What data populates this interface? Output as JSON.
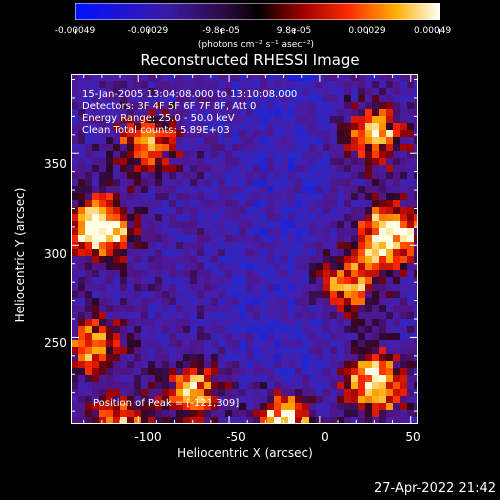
{
  "colorbar": {
    "ticks": [
      "-0.00049",
      "-0.00029",
      "-9.8e-05",
      "9.8e-05",
      "0.00029",
      "0.00049"
    ],
    "unit_label": "(photons cm⁻² s⁻¹ asec⁻²)"
  },
  "chart_data": {
    "type": "heatmap",
    "title": "Reconstructed RHESSI Image",
    "xlabel": "Heliocentric X (arcsec)",
    "ylabel": "Heliocentric Y (arcsec)",
    "xlim": [
      -137,
      54
    ],
    "ylim": [
      203,
      393
    ],
    "x_ticks": [
      "-100",
      "-50",
      "0",
      "50"
    ],
    "y_ticks": [
      "250",
      "300",
      "350"
    ],
    "color_range": [
      -0.00049,
      0.00049
    ],
    "colormap": "blue-purple-red-yellow-white",
    "info_lines": [
      "15-Jan-2005 13:04:08.000 to 13:10:08.000",
      "Detectors: 3F 4F 5F 6F 7F 8F, Att 0",
      "Energy Range: 25.0 - 50.0 keV",
      "Clean     Total counts: 5.89E+03"
    ],
    "peak_label": "Position of Peak = [-121,309]",
    "bright_regions": [
      {
        "x": -121,
        "y": 309,
        "level": 1.0
      },
      {
        "x": 38,
        "y": 305,
        "level": 0.95
      },
      {
        "x": 30,
        "y": 225,
        "level": 0.85
      },
      {
        "x": -20,
        "y": 205,
        "level": 0.85
      },
      {
        "x": -70,
        "y": 220,
        "level": 0.7
      },
      {
        "x": -125,
        "y": 245,
        "level": 0.6
      },
      {
        "x": -95,
        "y": 355,
        "level": 0.6
      },
      {
        "x": 30,
        "y": 360,
        "level": 0.7
      },
      {
        "x": 15,
        "y": 280,
        "level": 0.65
      },
      {
        "x": -110,
        "y": 200,
        "level": 0.7
      }
    ]
  },
  "datestamp": "27-Apr-2022 21:42"
}
